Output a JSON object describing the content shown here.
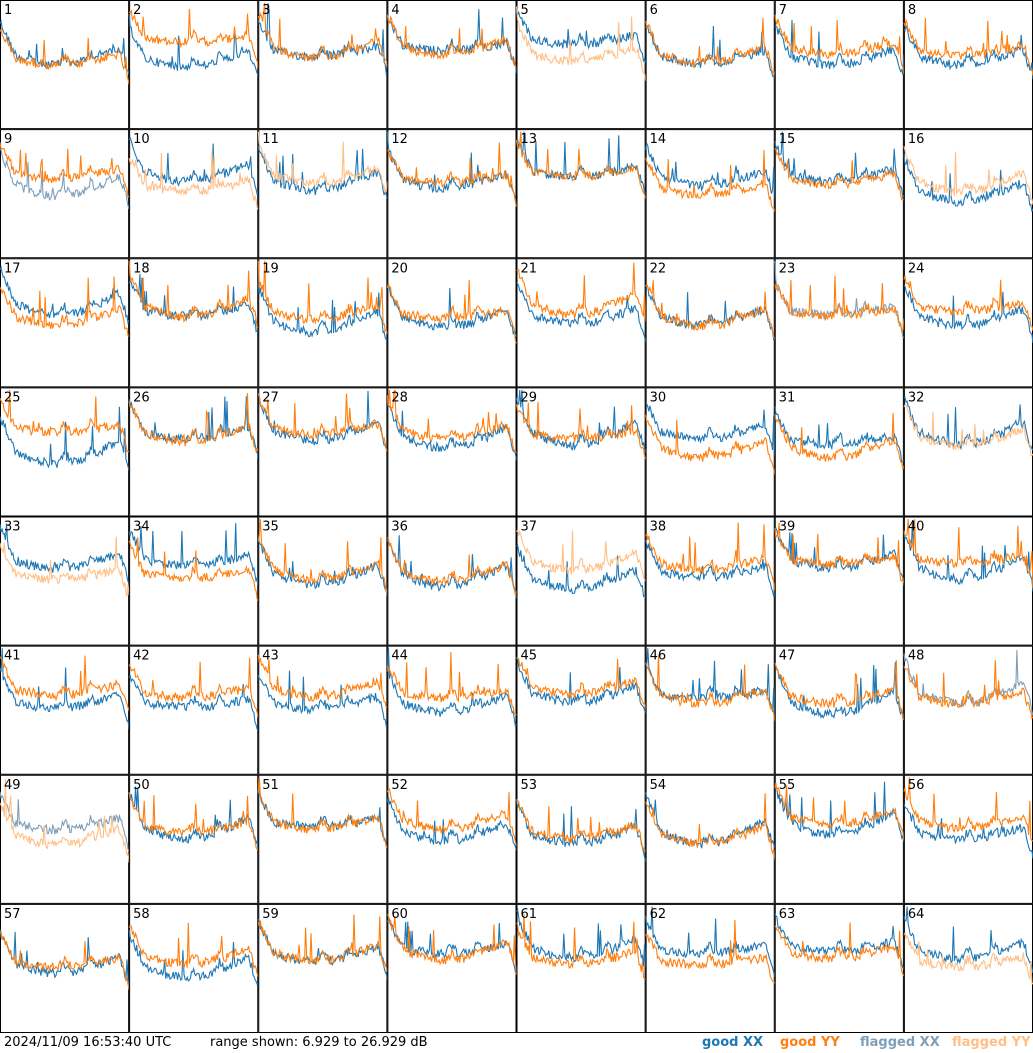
{
  "chart_data": {
    "type": "line",
    "panels": 64,
    "panel_labels": [
      "1",
      "2",
      "3",
      "4",
      "5",
      "6",
      "7",
      "8",
      "9",
      "10",
      "11",
      "12",
      "13",
      "14",
      "15",
      "16",
      "17",
      "18",
      "19",
      "20",
      "21",
      "22",
      "23",
      "24",
      "25",
      "26",
      "27",
      "28",
      "29",
      "30",
      "31",
      "32",
      "33",
      "34",
      "35",
      "36",
      "37",
      "38",
      "39",
      "40",
      "41",
      "42",
      "43",
      "44",
      "45",
      "46",
      "47",
      "48",
      "49",
      "50",
      "51",
      "52",
      "53",
      "54",
      "55",
      "56",
      "57",
      "58",
      "59",
      "60",
      "61",
      "62",
      "63",
      "64"
    ],
    "y_unit": "dB",
    "ylim": [
      6.929,
      26.929
    ],
    "series": [
      {
        "name": "good XX",
        "color": "#1f77b4"
      },
      {
        "name": "good YY",
        "color": "#ff7f0e"
      },
      {
        "name": "flagged XX",
        "color": "#7f9fb9"
      },
      {
        "name": "flagged YY",
        "color": "#ffbf87"
      }
    ],
    "flagged": {
      "xx": [
        9,
        23,
        48,
        49
      ],
      "yy": [
        5,
        10,
        11,
        16,
        32,
        33,
        37,
        49,
        64
      ]
    },
    "grid": false
  },
  "footer": {
    "timestamp": "2024/11/09 16:53:40 UTC",
    "range_text": "range shown: 6.929 to 26.929 dB",
    "legend": [
      "good XX",
      "good YY",
      "flagged XX",
      "flagged YY"
    ]
  },
  "colors": {
    "good_xx": "#1f77b4",
    "good_yy": "#ff7f0e",
    "flagged_xx": "#7f9fb9",
    "flagged_yy": "#ffbf87"
  }
}
